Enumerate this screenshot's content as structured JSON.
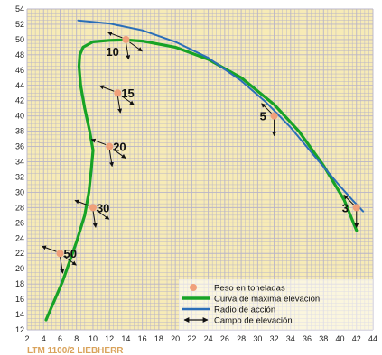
{
  "chart_data": {
    "type": "line",
    "xlim": [
      2,
      44
    ],
    "ylim": [
      12,
      54
    ],
    "x_ticks": [
      "2",
      "4",
      "6",
      "8",
      "10",
      "12",
      "14",
      "16",
      "18",
      "20",
      "22",
      "24",
      "26",
      "28",
      "30",
      "32",
      "34",
      "36",
      "38",
      "40",
      "42",
      "44"
    ],
    "y_ticks": [
      "12",
      "14",
      "16",
      "18",
      "20",
      "22",
      "24",
      "26",
      "28",
      "30",
      "32",
      "34",
      "36",
      "38",
      "40",
      "42",
      "44",
      "46",
      "48",
      "50",
      "52",
      "54"
    ],
    "grid": true,
    "background_color": "#f7ebb6",
    "grid_color": "#b8b4c8",
    "series": [
      {
        "name": "Curva de máxima elevación",
        "color": "#17a326",
        "points": [
          [
            4.3,
            13.3
          ],
          [
            6.3,
            18.3
          ],
          [
            8.0,
            23.5
          ],
          [
            9.0,
            27.0
          ],
          [
            9.5,
            30.0
          ],
          [
            9.8,
            33.0
          ],
          [
            10.0,
            35.5
          ],
          [
            9.6,
            38.0
          ],
          [
            9.0,
            41.0
          ],
          [
            8.5,
            44.0
          ],
          [
            8.3,
            46.5
          ],
          [
            8.4,
            48.0
          ],
          [
            8.8,
            49.0
          ],
          [
            10.0,
            49.7
          ],
          [
            12.0,
            49.9
          ],
          [
            14.0,
            49.95
          ],
          [
            16.0,
            49.8
          ],
          [
            20.0,
            49.0
          ],
          [
            24.0,
            47.4
          ],
          [
            28.0,
            45.0
          ],
          [
            32.0,
            41.5
          ],
          [
            35.0,
            38.0
          ],
          [
            38.0,
            33.5
          ],
          [
            40.5,
            29.0
          ],
          [
            42.0,
            25.0
          ]
        ]
      },
      {
        "name": "Radio de acción",
        "color": "#2a6eb8",
        "points": [
          [
            8.2,
            52.5
          ],
          [
            12.0,
            52.1
          ],
          [
            16.0,
            51.2
          ],
          [
            20.0,
            49.7
          ],
          [
            24.0,
            47.6
          ],
          [
            28.0,
            44.6
          ],
          [
            31.0,
            41.8
          ],
          [
            34.0,
            38.5
          ],
          [
            37.0,
            34.6
          ],
          [
            40.0,
            30.8
          ],
          [
            41.5,
            29.0
          ],
          [
            42.8,
            27.5
          ]
        ]
      }
    ],
    "load_points": [
      {
        "x": 14,
        "y": 50,
        "label": "10"
      },
      {
        "x": 13,
        "y": 43,
        "label": "15"
      },
      {
        "x": 12,
        "y": 36,
        "label": "20"
      },
      {
        "x": 10,
        "y": 28,
        "label": "30"
      },
      {
        "x": 6,
        "y": 22,
        "label": "50"
      },
      {
        "x": 32,
        "y": 40,
        "label": "5"
      },
      {
        "x": 42,
        "y": 28,
        "label": "3"
      }
    ],
    "legend": {
      "position": "bottom-right",
      "items": [
        {
          "label": "Peso en toneladas",
          "kind": "dot",
          "color": "#f0a07a"
        },
        {
          "label": "Curva de máxima elevación",
          "kind": "line",
          "color": "#17a326"
        },
        {
          "label": "Radio de acción",
          "kind": "line",
          "color": "#2a6eb8"
        },
        {
          "label": "Campo de elevación",
          "kind": "arrow",
          "color": "#111111"
        }
      ]
    },
    "footer": "LTM 1100/2 LIEBHERR"
  }
}
